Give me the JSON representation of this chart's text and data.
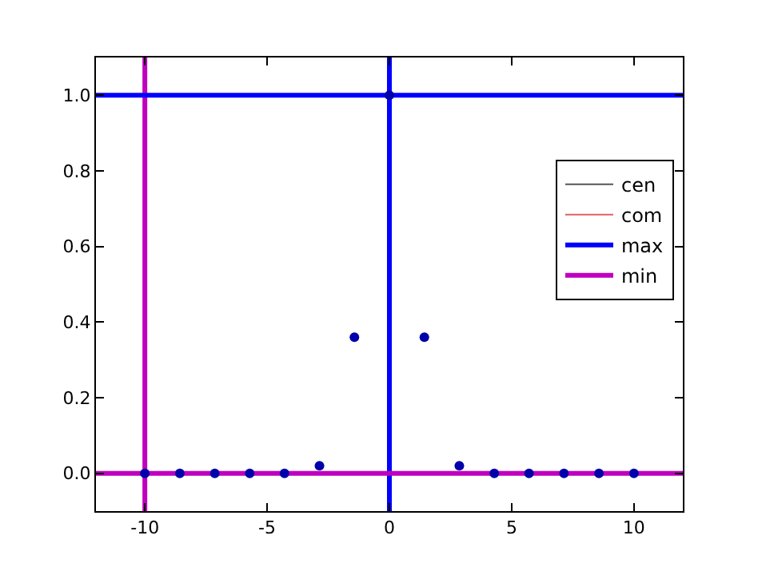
{
  "chart_data": {
    "type": "line",
    "xlim": [
      -12,
      12
    ],
    "xticks": [
      -10,
      -5,
      0,
      5,
      10
    ],
    "ylim": [
      -0.1,
      1.1
    ],
    "yticks": [
      {
        "value": 0,
        "label": "0.0"
      },
      {
        "value": 0.2,
        "label": "0.2"
      },
      {
        "value": 0.4,
        "label": "0.4"
      },
      {
        "value": 0.6,
        "label": "0.6"
      },
      {
        "value": 0.8,
        "label": "0.8"
      },
      {
        "value": 1,
        "label": "1.0"
      }
    ],
    "grid": false,
    "legend": "right",
    "series": [
      {
        "name": "cen",
        "color": "#555555"
      },
      {
        "name": "com",
        "color": "#e06060"
      },
      {
        "name": "max",
        "color": "#0000ff",
        "x": [
          -12,
          12
        ],
        "values": [
          1,
          1
        ]
      },
      {
        "name": "min",
        "color": "#bf00bf",
        "x": [
          -12,
          12
        ],
        "values": [
          0,
          0
        ]
      },
      {
        "type": "scatter",
        "color": "#0000aa",
        "marker": "circle",
        "x": [
          -10,
          -8.57,
          -7.14,
          -5.71,
          -4.29,
          -2.86,
          -1.43,
          0,
          1.43,
          2.86,
          4.29,
          5.71,
          7.14,
          8.57,
          10
        ],
        "values": [
          0,
          0,
          0,
          0,
          0,
          0.02,
          0.36,
          1,
          0.36,
          0.02,
          0,
          0,
          0,
          0,
          0
        ]
      }
    ],
    "ref_lines": [
      {
        "axis": "x",
        "value": 0,
        "color": "#0000ff"
      },
      {
        "axis": "x",
        "value": -10,
        "color": "#bf00bf"
      }
    ]
  }
}
